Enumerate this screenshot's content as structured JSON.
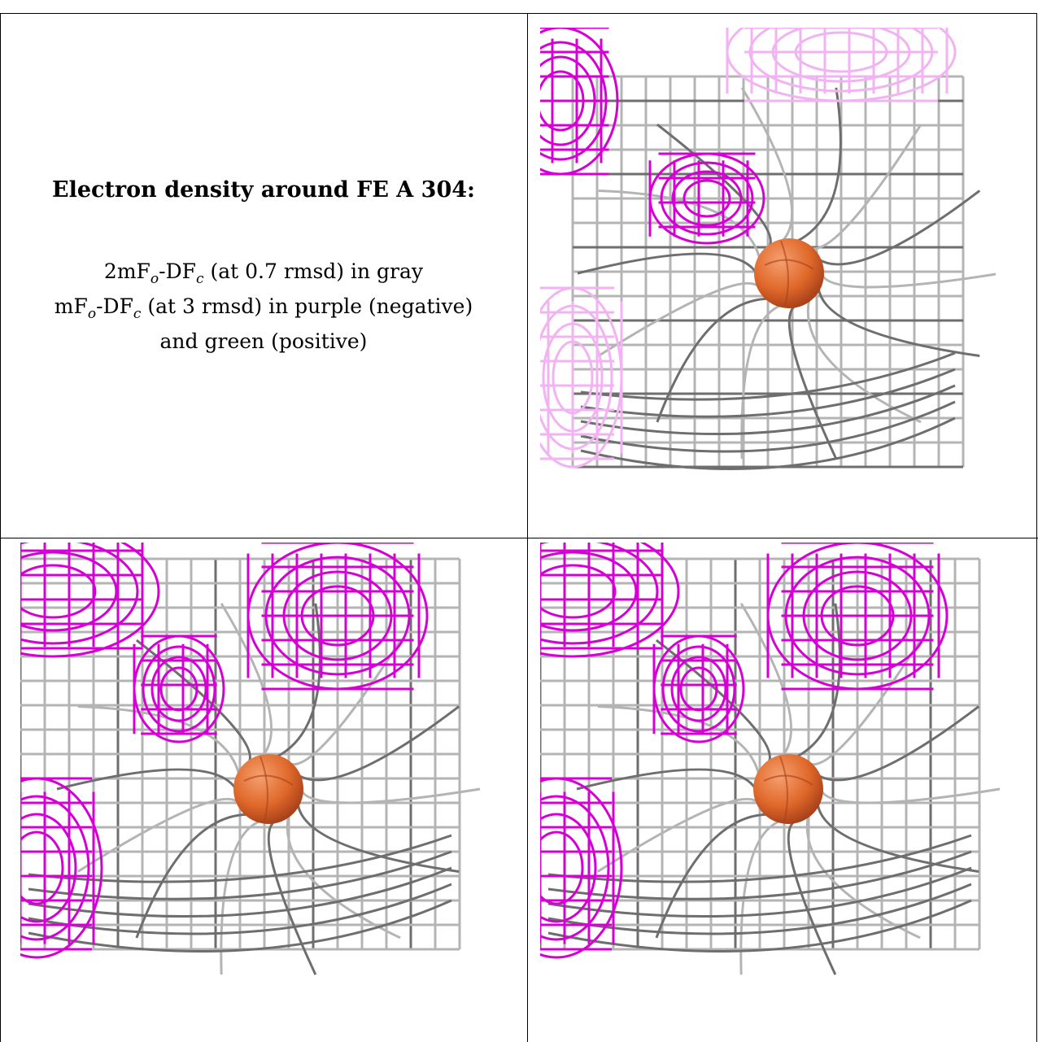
{
  "caption": {
    "title": "Electron density around FE A 304:",
    "line1_prefix": "2mF",
    "line1_sub_o": "o",
    "line1_mid": "-DF",
    "line1_sub_c": "c",
    "line1_suffix": " (at 0.7 rmsd) in gray",
    "line2_prefix": "mF",
    "line2_sub_o": "o",
    "line2_mid": "-DF",
    "line2_sub_c": "c",
    "line2_suffix": " (at 3 rmsd) in purple (negative)",
    "line3": "and green (positive)"
  },
  "colors": {
    "gray_mesh": "#b4b4b4",
    "dark_mesh": "#6e6e6e",
    "purple_mesh": "#d400d4",
    "light_purple": "#f2b3f2",
    "atom": "#e0682a",
    "atom_highlight": "#f5a070",
    "atom_shadow": "#a8401a"
  },
  "panels": [
    {
      "id": "top-right",
      "atom_name": "FE A 304"
    },
    {
      "id": "bottom-left",
      "atom_name": "FE A 304"
    },
    {
      "id": "bottom-right",
      "atom_name": "FE A 304"
    }
  ]
}
